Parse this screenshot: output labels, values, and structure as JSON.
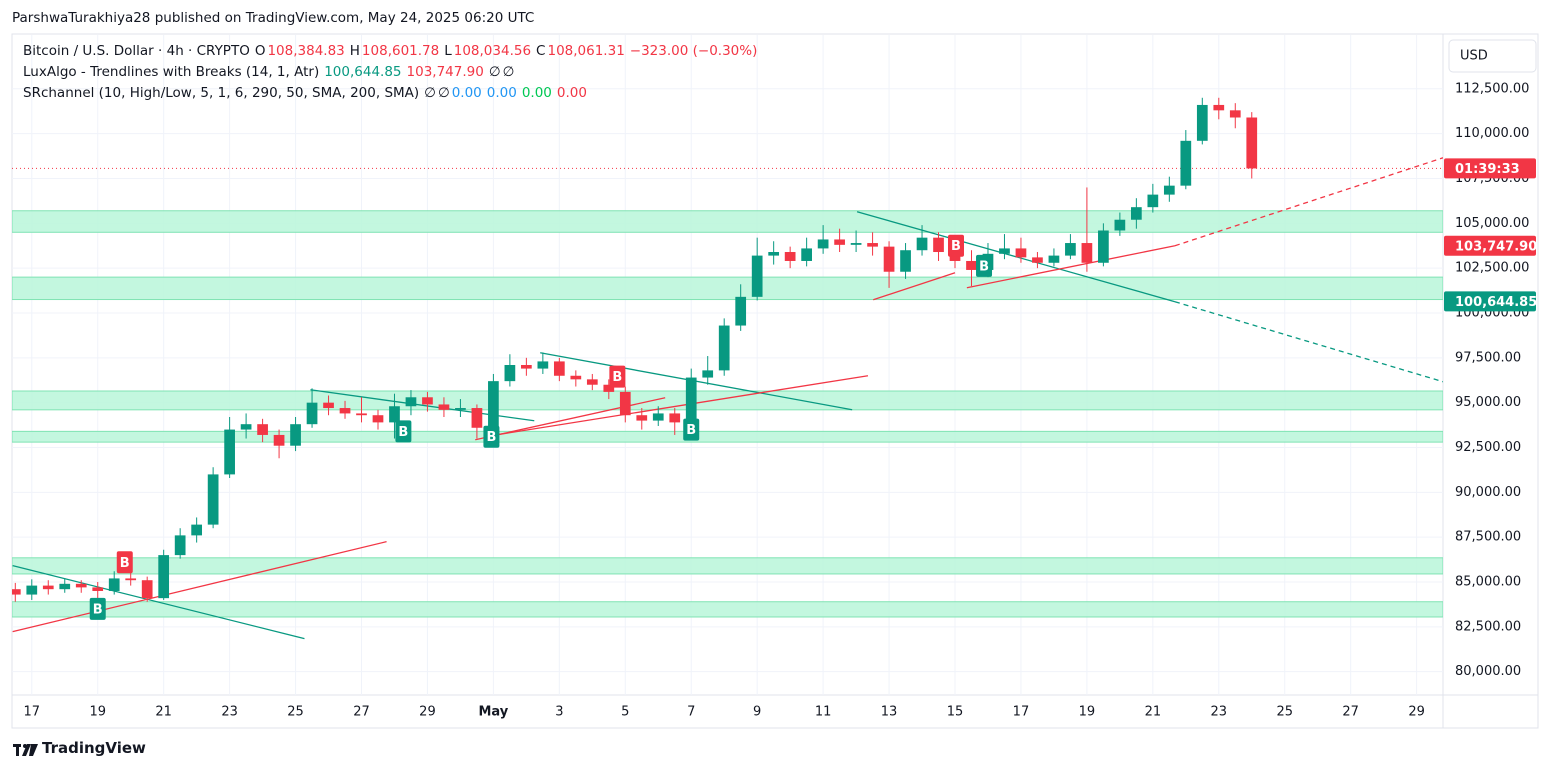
{
  "header": {
    "byline": "ParshwaTurakhiya28 published on TradingView.com, May 24, 2025 06:20 UTC"
  },
  "legend": {
    "lines": [
      [
        {
          "text": "Bitcoin / U.S. Dollar · 4h · CRYPTO",
          "color": "#131722"
        },
        {
          "text": "O",
          "color": "#131722"
        },
        {
          "text": "108,384.83",
          "color": "#f23645"
        },
        {
          "text": "H",
          "color": "#131722"
        },
        {
          "text": "108,601.78",
          "color": "#f23645"
        },
        {
          "text": "L",
          "color": "#131722"
        },
        {
          "text": "108,034.56",
          "color": "#f23645"
        },
        {
          "text": "C",
          "color": "#131722"
        },
        {
          "text": "108,061.31",
          "color": "#f23645"
        },
        {
          "text": "−323.00 (−0.30%)",
          "color": "#f23645"
        }
      ],
      [
        {
          "text": "LuxAlgo - Trendlines with Breaks (14, 1, Atr)",
          "color": "#131722"
        },
        {
          "text": "100,644.85",
          "color": "#089981"
        },
        {
          "text": "103,747.90",
          "color": "#f23645"
        },
        {
          "text": "∅",
          "color": "#131722"
        },
        {
          "text": "∅",
          "color": "#131722"
        }
      ],
      [
        {
          "text": "SRchannel (10, High/Low, 5, 1, 6, 290, 50, SMA, 200, SMA)",
          "color": "#131722"
        },
        {
          "text": "∅",
          "color": "#131722"
        },
        {
          "text": "∅",
          "color": "#131722"
        },
        {
          "text": "0.00",
          "color": "#2196f3"
        },
        {
          "text": "0.00",
          "color": "#2196f3"
        },
        {
          "text": "0.00",
          "color": "#00c853"
        },
        {
          "text": "0.00",
          "color": "#f23645"
        }
      ]
    ]
  },
  "footer": {
    "brand": "TradingView"
  },
  "chart_data": {
    "type": "candlestick",
    "currency": "USD",
    "up_color": "#089981",
    "down_color": "#f23645",
    "grid": true,
    "xlim": [
      16.4,
      59.8
    ],
    "xticks": [
      {
        "value": 17,
        "label": "17"
      },
      {
        "value": 19,
        "label": "19"
      },
      {
        "value": 21,
        "label": "21"
      },
      {
        "value": 23,
        "label": "23"
      },
      {
        "value": 25,
        "label": "25"
      },
      {
        "value": 27,
        "label": "27"
      },
      {
        "value": 29,
        "label": "29"
      },
      {
        "value": 31,
        "label": "May",
        "bold": true
      },
      {
        "value": 33,
        "label": "3"
      },
      {
        "value": 35,
        "label": "5"
      },
      {
        "value": 37,
        "label": "7"
      },
      {
        "value": 39,
        "label": "9"
      },
      {
        "value": 41,
        "label": "11"
      },
      {
        "value": 43,
        "label": "13"
      },
      {
        "value": 45,
        "label": "15"
      },
      {
        "value": 47,
        "label": "17"
      },
      {
        "value": 49,
        "label": "19"
      },
      {
        "value": 51,
        "label": "21"
      },
      {
        "value": 53,
        "label": "23"
      },
      {
        "value": 55,
        "label": "25"
      },
      {
        "value": 57,
        "label": "27"
      },
      {
        "value": 59,
        "label": "29"
      }
    ],
    "ylim": [
      78700,
      115500
    ],
    "yticks": [
      {
        "value": 80000,
        "label": "80,000.00"
      },
      {
        "value": 82500,
        "label": "82,500.00"
      },
      {
        "value": 85000,
        "label": "85,000.00"
      },
      {
        "value": 87500,
        "label": "87,500.00"
      },
      {
        "value": 90000,
        "label": "90,000.00"
      },
      {
        "value": 92500,
        "label": "92,500.00"
      },
      {
        "value": 95000,
        "label": "95,000.00"
      },
      {
        "value": 97500,
        "label": "97,500.00"
      },
      {
        "value": 100000,
        "label": "100,000.00"
      },
      {
        "value": 102500,
        "label": "102,500.00"
      },
      {
        "value": 105000,
        "label": "105,000.00"
      },
      {
        "value": 107500,
        "label": "107,500.00"
      },
      {
        "value": 110000,
        "label": "110,000.00"
      },
      {
        "value": 112500,
        "label": "112,500.00"
      }
    ],
    "candles": [
      {
        "x": 16.5,
        "o": 84600,
        "h": 84950,
        "l": 83900,
        "c": 84300
      },
      {
        "x": 17,
        "o": 84300,
        "h": 85150,
        "l": 84000,
        "c": 84800
      },
      {
        "x": 17.5,
        "o": 84800,
        "h": 85100,
        "l": 84300,
        "c": 84600
      },
      {
        "x": 18,
        "o": 84600,
        "h": 85200,
        "l": 84400,
        "c": 84900
      },
      {
        "x": 18.5,
        "o": 84900,
        "h": 85100,
        "l": 84400,
        "c": 84700
      },
      {
        "x": 19,
        "o": 84700,
        "h": 85000,
        "l": 84100,
        "c": 84500
      },
      {
        "x": 19.5,
        "o": 84500,
        "h": 85600,
        "l": 84300,
        "c": 85200
      },
      {
        "x": 20,
        "o": 85200,
        "h": 85600,
        "l": 84800,
        "c": 85100
      },
      {
        "x": 20.5,
        "o": 85100,
        "h": 85300,
        "l": 83900,
        "c": 84100
      },
      {
        "x": 21,
        "o": 84100,
        "h": 86800,
        "l": 84000,
        "c": 86500
      },
      {
        "x": 21.5,
        "o": 86500,
        "h": 88000,
        "l": 86300,
        "c": 87600
      },
      {
        "x": 22,
        "o": 87600,
        "h": 88600,
        "l": 87200,
        "c": 88200
      },
      {
        "x": 22.5,
        "o": 88200,
        "h": 91400,
        "l": 88000,
        "c": 91000
      },
      {
        "x": 23,
        "o": 91000,
        "h": 94200,
        "l": 90800,
        "c": 93500
      },
      {
        "x": 23.5,
        "o": 93500,
        "h": 94400,
        "l": 93000,
        "c": 93800
      },
      {
        "x": 24,
        "o": 93800,
        "h": 94100,
        "l": 92800,
        "c": 93200
      },
      {
        "x": 24.5,
        "o": 93200,
        "h": 93500,
        "l": 91900,
        "c": 92600
      },
      {
        "x": 25,
        "o": 92600,
        "h": 94200,
        "l": 92300,
        "c": 93800
      },
      {
        "x": 25.5,
        "o": 93800,
        "h": 95800,
        "l": 93600,
        "c": 95000
      },
      {
        "x": 26,
        "o": 95000,
        "h": 95400,
        "l": 94300,
        "c": 94700
      },
      {
        "x": 26.5,
        "o": 94700,
        "h": 95100,
        "l": 94100,
        "c": 94400
      },
      {
        "x": 27,
        "o": 94400,
        "h": 95300,
        "l": 93900,
        "c": 94300
      },
      {
        "x": 27.5,
        "o": 94300,
        "h": 94600,
        "l": 93500,
        "c": 93900
      },
      {
        "x": 28,
        "o": 93900,
        "h": 95500,
        "l": 93000,
        "c": 94800
      },
      {
        "x": 28.5,
        "o": 94800,
        "h": 95700,
        "l": 94300,
        "c": 95300
      },
      {
        "x": 29,
        "o": 95300,
        "h": 95600,
        "l": 94500,
        "c": 94900
      },
      {
        "x": 29.5,
        "o": 94900,
        "h": 95300,
        "l": 94200,
        "c": 94600
      },
      {
        "x": 30,
        "o": 94600,
        "h": 95200,
        "l": 94200,
        "c": 94700
      },
      {
        "x": 30.5,
        "o": 94700,
        "h": 94900,
        "l": 93000,
        "c": 93600
      },
      {
        "x": 31,
        "o": 93600,
        "h": 96600,
        "l": 93400,
        "c": 96200
      },
      {
        "x": 31.5,
        "o": 96200,
        "h": 97700,
        "l": 95900,
        "c": 97100
      },
      {
        "x": 32,
        "o": 97100,
        "h": 97500,
        "l": 96500,
        "c": 96900
      },
      {
        "x": 32.5,
        "o": 96900,
        "h": 97800,
        "l": 96600,
        "c": 97300
      },
      {
        "x": 33,
        "o": 97300,
        "h": 97500,
        "l": 96200,
        "c": 96500
      },
      {
        "x": 33.5,
        "o": 96500,
        "h": 96800,
        "l": 95900,
        "c": 96300
      },
      {
        "x": 34,
        "o": 96300,
        "h": 96600,
        "l": 95700,
        "c": 96000
      },
      {
        "x": 34.5,
        "o": 96000,
        "h": 96300,
        "l": 95200,
        "c": 95600
      },
      {
        "x": 35,
        "o": 95600,
        "h": 95900,
        "l": 93900,
        "c": 94300
      },
      {
        "x": 35.5,
        "o": 94300,
        "h": 94700,
        "l": 93500,
        "c": 94000
      },
      {
        "x": 36,
        "o": 94000,
        "h": 94800,
        "l": 93700,
        "c": 94400
      },
      {
        "x": 36.5,
        "o": 94400,
        "h": 94700,
        "l": 93200,
        "c": 93900
      },
      {
        "x": 37,
        "o": 93900,
        "h": 96900,
        "l": 93700,
        "c": 96400
      },
      {
        "x": 37.5,
        "o": 96400,
        "h": 97600,
        "l": 96000,
        "c": 96800
      },
      {
        "x": 38,
        "o": 96800,
        "h": 99700,
        "l": 96500,
        "c": 99300
      },
      {
        "x": 38.5,
        "o": 99300,
        "h": 101600,
        "l": 99000,
        "c": 100900
      },
      {
        "x": 39,
        "o": 100900,
        "h": 104200,
        "l": 100700,
        "c": 103200
      },
      {
        "x": 39.5,
        "o": 103200,
        "h": 104000,
        "l": 102700,
        "c": 103400
      },
      {
        "x": 40,
        "o": 103400,
        "h": 103700,
        "l": 102500,
        "c": 102900
      },
      {
        "x": 40.5,
        "o": 102900,
        "h": 104200,
        "l": 102600,
        "c": 103600
      },
      {
        "x": 41,
        "o": 103600,
        "h": 104900,
        "l": 103300,
        "c": 104100
      },
      {
        "x": 41.5,
        "o": 104100,
        "h": 104700,
        "l": 103400,
        "c": 103800
      },
      {
        "x": 42,
        "o": 103800,
        "h": 104600,
        "l": 103400,
        "c": 103900
      },
      {
        "x": 42.5,
        "o": 103900,
        "h": 104500,
        "l": 103200,
        "c": 103700
      },
      {
        "x": 43,
        "o": 103700,
        "h": 104000,
        "l": 101400,
        "c": 102300
      },
      {
        "x": 43.5,
        "o": 102300,
        "h": 103900,
        "l": 101900,
        "c": 103500
      },
      {
        "x": 44,
        "o": 103500,
        "h": 104900,
        "l": 103200,
        "c": 104200
      },
      {
        "x": 44.5,
        "o": 104200,
        "h": 104500,
        "l": 102900,
        "c": 103400
      },
      {
        "x": 45,
        "o": 103400,
        "h": 103800,
        "l": 102500,
        "c": 102900
      },
      {
        "x": 45.5,
        "o": 102900,
        "h": 103500,
        "l": 101500,
        "c": 102400
      },
      {
        "x": 46,
        "o": 102400,
        "h": 103900,
        "l": 102000,
        "c": 103300
      },
      {
        "x": 46.5,
        "o": 103300,
        "h": 104400,
        "l": 103000,
        "c": 103600
      },
      {
        "x": 47,
        "o": 103600,
        "h": 104200,
        "l": 102800,
        "c": 103100
      },
      {
        "x": 47.5,
        "o": 103100,
        "h": 103400,
        "l": 102500,
        "c": 102800
      },
      {
        "x": 48,
        "o": 102800,
        "h": 103600,
        "l": 102600,
        "c": 103200
      },
      {
        "x": 48.5,
        "o": 103200,
        "h": 104400,
        "l": 103000,
        "c": 103900
      },
      {
        "x": 49,
        "o": 103900,
        "h": 107000,
        "l": 102300,
        "c": 102800
      },
      {
        "x": 49.5,
        "o": 102800,
        "h": 105000,
        "l": 102600,
        "c": 104600
      },
      {
        "x": 50,
        "o": 104600,
        "h": 105600,
        "l": 104300,
        "c": 105200
      },
      {
        "x": 50.5,
        "o": 105200,
        "h": 106400,
        "l": 104700,
        "c": 105900
      },
      {
        "x": 51,
        "o": 105900,
        "h": 107200,
        "l": 105600,
        "c": 106600
      },
      {
        "x": 51.5,
        "o": 106600,
        "h": 107600,
        "l": 106200,
        "c": 107100
      },
      {
        "x": 52,
        "o": 107100,
        "h": 110200,
        "l": 106900,
        "c": 109600
      },
      {
        "x": 52.5,
        "o": 109600,
        "h": 112000,
        "l": 109400,
        "c": 111600
      },
      {
        "x": 53,
        "o": 111600,
        "h": 112000,
        "l": 110800,
        "c": 111300
      },
      {
        "x": 53.5,
        "o": 111300,
        "h": 111700,
        "l": 110300,
        "c": 110900
      },
      {
        "x": 54,
        "o": 110900,
        "h": 111200,
        "l": 107500,
        "c": 108061.31
      }
    ],
    "zones": [
      {
        "low": 104500,
        "high": 105700
      },
      {
        "low": 100750,
        "high": 102000
      },
      {
        "low": 94600,
        "high": 95650
      },
      {
        "low": 92800,
        "high": 93400
      },
      {
        "low": 85450,
        "high": 86350
      },
      {
        "low": 83050,
        "high": 83900
      }
    ],
    "zone_color": "#b9f6d9",
    "zone_border": "#7fe3b3",
    "trendlines": [
      {
        "x1": 16.42,
        "y1": 85912,
        "x2": 25.27,
        "y2": 81843,
        "color": "#089981",
        "dashed": false
      },
      {
        "x1": 25.45,
        "y1": 95720,
        "x2": 32.24,
        "y2": 93990,
        "color": "#089981",
        "dashed": false
      },
      {
        "x1": 32.42,
        "y1": 97785,
        "x2": 41.88,
        "y2": 94606,
        "color": "#089981",
        "dashed": false
      },
      {
        "x1": 42.03,
        "y1": 105644,
        "x2": 51.67,
        "y2": 100627,
        "color": "#089981",
        "dashed": false
      },
      {
        "x1": 51.67,
        "y1": 100627,
        "x2": 59.8,
        "y2": 96168,
        "color": "#089981",
        "dashed": true
      },
      {
        "x1": 16.42,
        "y1": 82233,
        "x2": 27.76,
        "y2": 87250,
        "color": "#f23645",
        "dashed": false
      },
      {
        "x1": 30.45,
        "y1": 92935,
        "x2": 36.21,
        "y2": 95276,
        "color": "#f23645",
        "dashed": false
      },
      {
        "x1": 31.12,
        "y1": 93214,
        "x2": 42.36,
        "y2": 96503,
        "color": "#f23645",
        "dashed": false
      },
      {
        "x1": 42.52,
        "y1": 100739,
        "x2": 45.0,
        "y2": 102244,
        "color": "#f23645",
        "dashed": false
      },
      {
        "x1": 45.36,
        "y1": 101408,
        "x2": 51.67,
        "y2": 103749,
        "color": "#f23645",
        "dashed": false
      },
      {
        "x1": 51.67,
        "y1": 103749,
        "x2": 59.8,
        "y2": 108654,
        "color": "#f23645",
        "dashed": true
      }
    ],
    "markers": [
      {
        "x": 19.0,
        "y": 83500,
        "label": "B",
        "color": "#089981"
      },
      {
        "x": 19.82,
        "y": 86100,
        "label": "B",
        "color": "#f23645"
      },
      {
        "x": 28.27,
        "y": 93400,
        "label": "B",
        "color": "#089981"
      },
      {
        "x": 30.94,
        "y": 93100,
        "label": "B",
        "color": "#089981"
      },
      {
        "x": 34.76,
        "y": 96450,
        "label": "B",
        "color": "#f23645"
      },
      {
        "x": 37.0,
        "y": 93500,
        "label": "B",
        "color": "#089981"
      },
      {
        "x": 45.03,
        "y": 103750,
        "label": "B",
        "color": "#f23645"
      },
      {
        "x": 45.88,
        "y": 102630,
        "label": "B",
        "color": "#089981"
      }
    ],
    "price_tags": [
      {
        "value": 108061.31,
        "label": "01:39:33",
        "color": "#f23645",
        "price_line": true
      },
      {
        "value": 103747.9,
        "label": "103,747.90",
        "color": "#f23645",
        "price_line": false
      },
      {
        "value": 100644.85,
        "label": "100,644.85",
        "color": "#089981",
        "price_line": false
      }
    ]
  }
}
